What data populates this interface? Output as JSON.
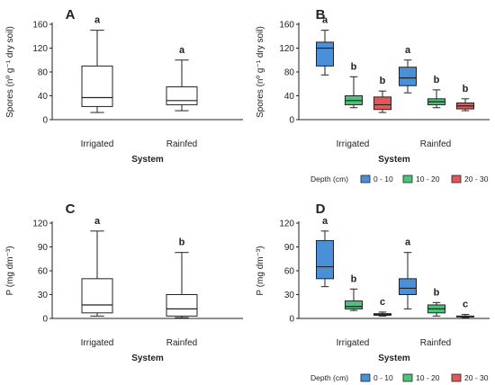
{
  "legend": {
    "title": "Depth (cm)",
    "items": [
      {
        "label": "0 - 10",
        "color": "#4a90d9"
      },
      {
        "label": "10 - 20",
        "color": "#4cc37a"
      },
      {
        "label": "20 - 30",
        "color": "#e2575a"
      }
    ]
  },
  "chart_data": [
    {
      "panel": "A",
      "type": "boxplot",
      "ylabel": "Spores (nº g⁻¹ dry soil)",
      "xlabel": "System",
      "ylim": [
        0,
        160
      ],
      "yticks": [
        0,
        40,
        80,
        120,
        160
      ],
      "categories": [
        "Irrigated",
        "Rainfed"
      ],
      "boxes": [
        {
          "category": "Irrigated",
          "min": 12,
          "q1": 22,
          "median": 37,
          "q3": 90,
          "max": 150,
          "label": "a"
        },
        {
          "category": "Rainfed",
          "min": 15,
          "q1": 25,
          "median": 32,
          "q3": 55,
          "max": 100,
          "label": "a"
        }
      ]
    },
    {
      "panel": "B",
      "type": "boxplot",
      "ylabel": "Spores (nº g⁻¹ dry soil)",
      "xlabel": "System",
      "ylim": [
        0,
        160
      ],
      "yticks": [
        0,
        40,
        80,
        120,
        160
      ],
      "categories": [
        "Irrigated",
        "Rainfed"
      ],
      "series": [
        "0 - 10",
        "10 - 20",
        "20 - 30"
      ],
      "boxes": [
        {
          "category": "Irrigated",
          "series": "0 - 10",
          "min": 75,
          "q1": 90,
          "median": 120,
          "q3": 130,
          "max": 150,
          "label": "a"
        },
        {
          "category": "Irrigated",
          "series": "10 - 20",
          "min": 20,
          "q1": 25,
          "median": 32,
          "q3": 40,
          "max": 72,
          "label": "b"
        },
        {
          "category": "Irrigated",
          "series": "20 - 30",
          "min": 12,
          "q1": 17,
          "median": 25,
          "q3": 38,
          "max": 48,
          "label": "b"
        },
        {
          "category": "Rainfed",
          "series": "0 - 10",
          "min": 45,
          "q1": 57,
          "median": 70,
          "q3": 88,
          "max": 100,
          "label": "a"
        },
        {
          "category": "Rainfed",
          "series": "10 - 20",
          "min": 20,
          "q1": 25,
          "median": 30,
          "q3": 35,
          "max": 50,
          "label": "b"
        },
        {
          "category": "Rainfed",
          "series": "20 - 30",
          "min": 15,
          "q1": 18,
          "median": 23,
          "q3": 28,
          "max": 35,
          "label": "b"
        }
      ]
    },
    {
      "panel": "C",
      "type": "boxplot",
      "ylabel": "P (mg dm⁻³)",
      "xlabel": "System",
      "ylim": [
        0,
        120
      ],
      "yticks": [
        0,
        30,
        60,
        90,
        120
      ],
      "categories": [
        "Irrigated",
        "Rainfed"
      ],
      "boxes": [
        {
          "category": "Irrigated",
          "min": 3,
          "q1": 7,
          "median": 17,
          "q3": 50,
          "max": 110,
          "label": "a"
        },
        {
          "category": "Rainfed",
          "min": 1,
          "q1": 3,
          "median": 12,
          "q3": 30,
          "max": 83,
          "label": "b"
        }
      ]
    },
    {
      "panel": "D",
      "type": "boxplot",
      "ylabel": "P (mg dm⁻³)",
      "xlabel": "System",
      "ylim": [
        0,
        120
      ],
      "yticks": [
        0,
        30,
        60,
        90,
        120
      ],
      "categories": [
        "Irrigated",
        "Rainfed"
      ],
      "series": [
        "0 - 10",
        "10 - 20",
        "20 - 30"
      ],
      "boxes": [
        {
          "category": "Irrigated",
          "series": "0 - 10",
          "min": 40,
          "q1": 50,
          "median": 65,
          "q3": 98,
          "max": 110,
          "label": "a"
        },
        {
          "category": "Irrigated",
          "series": "10 - 20",
          "min": 10,
          "q1": 12,
          "median": 15,
          "q3": 22,
          "max": 37,
          "label": "b"
        },
        {
          "category": "Irrigated",
          "series": "20 - 30",
          "min": 3,
          "q1": 4,
          "median": 5,
          "q3": 6,
          "max": 8,
          "label": "c"
        },
        {
          "category": "Rainfed",
          "series": "0 - 10",
          "min": 12,
          "q1": 30,
          "median": 38,
          "q3": 50,
          "max": 83,
          "label": "a"
        },
        {
          "category": "Rainfed",
          "series": "10 - 20",
          "min": 3,
          "q1": 7,
          "median": 12,
          "q3": 17,
          "max": 20,
          "label": "b"
        },
        {
          "category": "Rainfed",
          "series": "20 - 30",
          "min": 1,
          "q1": 2,
          "median": 2.5,
          "q3": 3,
          "max": 5,
          "label": "c"
        }
      ]
    }
  ]
}
